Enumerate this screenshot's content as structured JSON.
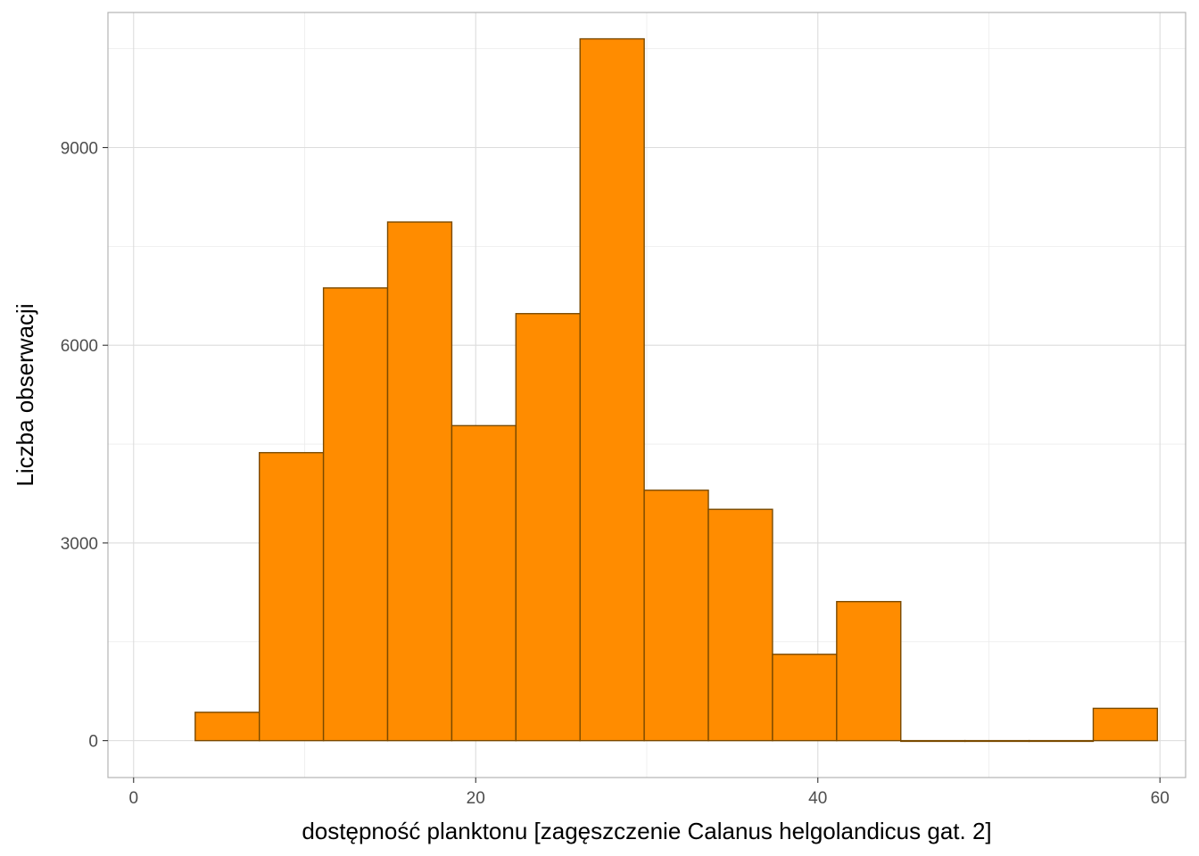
{
  "chart_data": {
    "type": "bar",
    "title": "",
    "xlabel": "dostępność planktonu [zagęszczenie Calanus helgolandicus gat. 2]",
    "ylabel": "Liczba obserwacji",
    "bar_fill": "#ff8c00",
    "bar_stroke": "#7a4a00",
    "grid": true,
    "xlim": [
      -1.5,
      61.5
    ],
    "ylim": [
      -560,
      11050
    ],
    "x_ticks": [
      0,
      20,
      40,
      60
    ],
    "y_ticks": [
      0,
      3000,
      6000,
      9000
    ],
    "x_tick_labels": [
      "0",
      "20",
      "40",
      "60"
    ],
    "y_tick_labels": [
      "0",
      "3000",
      "6000",
      "9000"
    ],
    "bins": [
      {
        "x0": 3.6,
        "x1": 7.35,
        "count": 430
      },
      {
        "x0": 7.35,
        "x1": 11.1,
        "count": 4370
      },
      {
        "x0": 11.1,
        "x1": 14.85,
        "count": 6870
      },
      {
        "x0": 14.85,
        "x1": 18.6,
        "count": 7870
      },
      {
        "x0": 18.6,
        "x1": 22.35,
        "count": 4780
      },
      {
        "x0": 22.35,
        "x1": 26.1,
        "count": 6480
      },
      {
        "x0": 26.1,
        "x1": 29.85,
        "count": 10650
      },
      {
        "x0": 29.85,
        "x1": 33.6,
        "count": 3800
      },
      {
        "x0": 33.6,
        "x1": 37.35,
        "count": 3510
      },
      {
        "x0": 37.35,
        "x1": 41.1,
        "count": 1310
      },
      {
        "x0": 41.1,
        "x1": 44.85,
        "count": 2110
      },
      {
        "x0": 44.85,
        "x1": 48.6,
        "count": 0
      },
      {
        "x0": 48.6,
        "x1": 52.35,
        "count": 0
      },
      {
        "x0": 52.35,
        "x1": 56.1,
        "count": 0
      },
      {
        "x0": 56.1,
        "x1": 59.85,
        "count": 490
      }
    ]
  }
}
